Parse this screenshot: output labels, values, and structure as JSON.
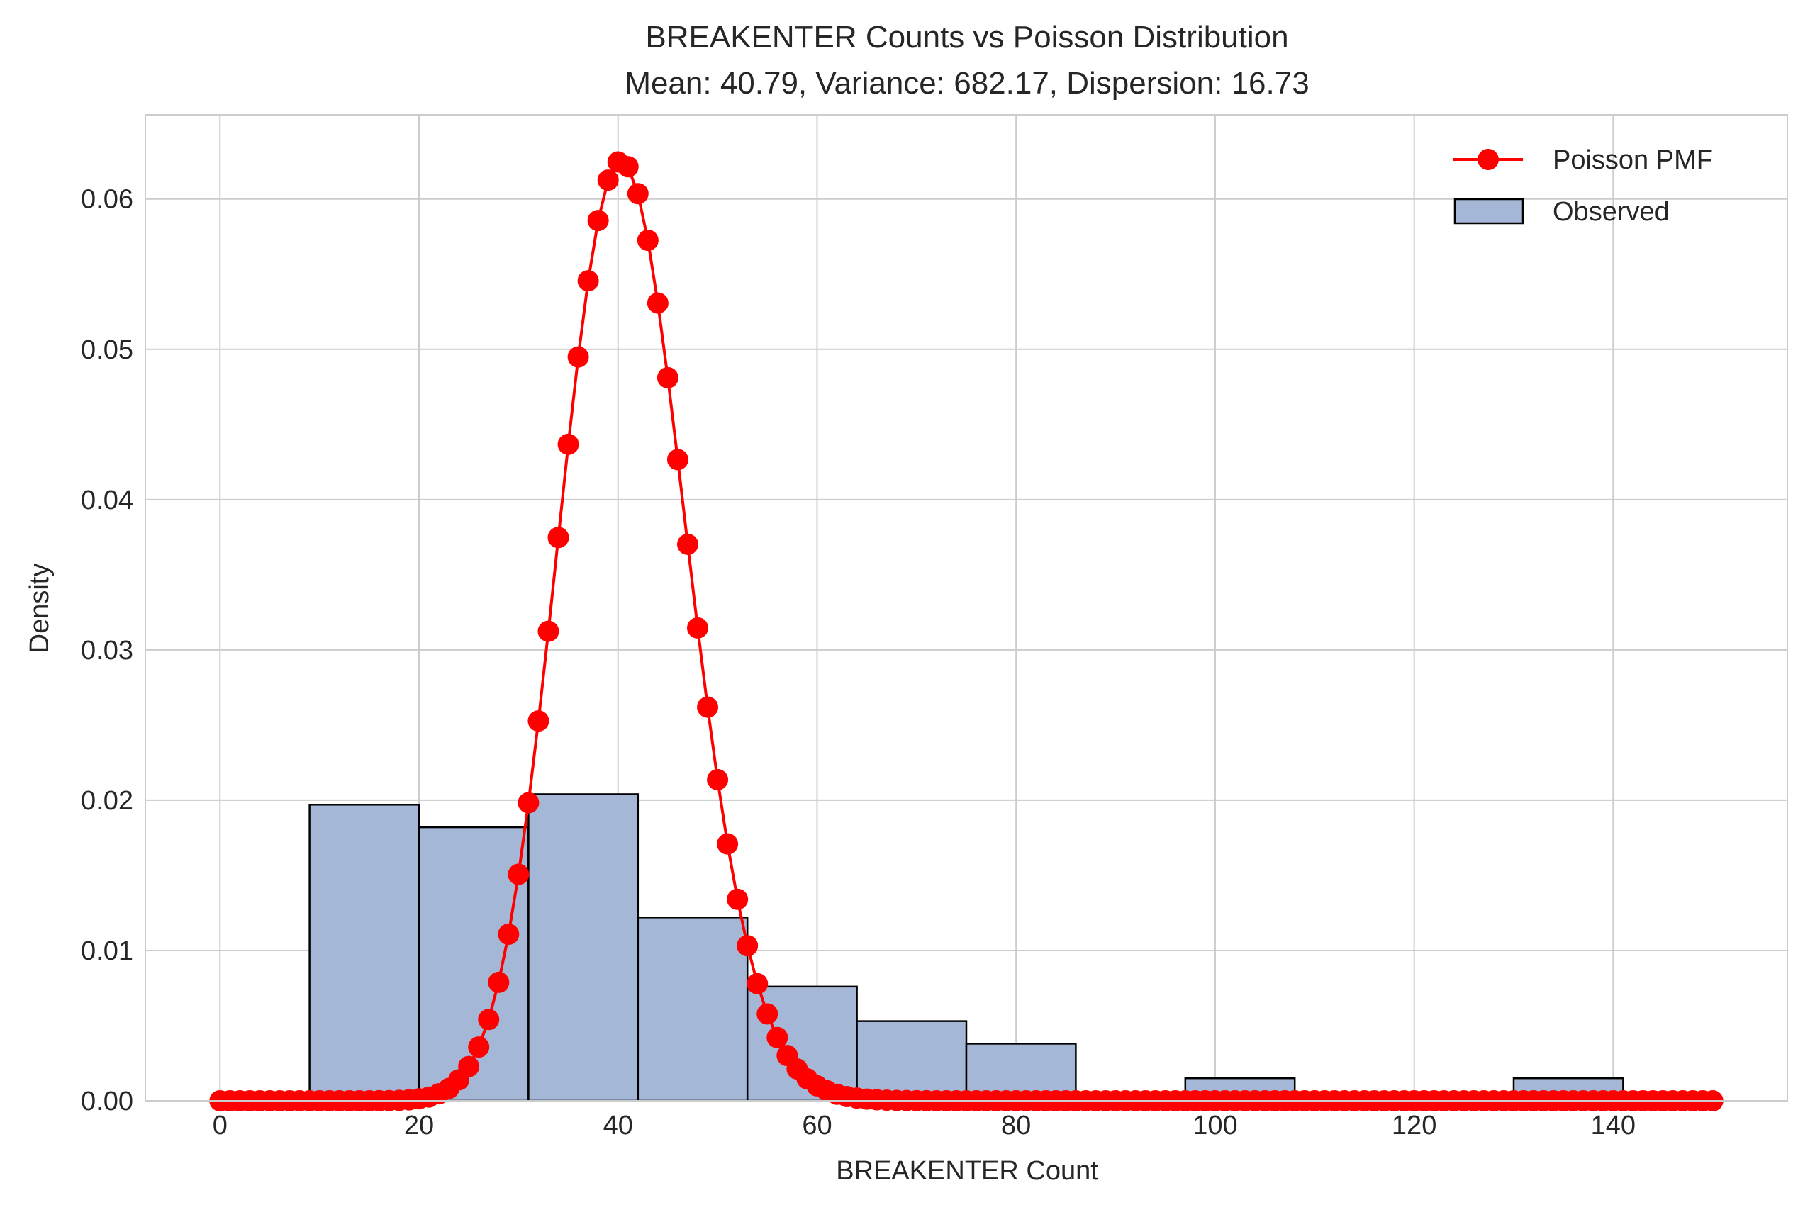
{
  "chart_data": {
    "type": "bar",
    "title": "BREAKENTER Counts vs Poisson Distribution",
    "subtitle": "Mean: 40.79, Variance: 682.17, Dispersion: 16.73",
    "xlabel": "BREAKENTER Count",
    "ylabel": "Density",
    "xlim": [
      -7.5,
      157.5
    ],
    "ylim": [
      0,
      0.0656
    ],
    "xticks": [
      0,
      20,
      40,
      60,
      80,
      100,
      120,
      140
    ],
    "yticks": [
      0.0,
      0.01,
      0.02,
      0.03,
      0.04,
      0.05,
      0.06
    ],
    "xtick_labels": [
      "0",
      "20",
      "40",
      "60",
      "80",
      "100",
      "120",
      "140"
    ],
    "ytick_labels": [
      "0.00",
      "0.01",
      "0.02",
      "0.03",
      "0.04",
      "0.05",
      "0.06"
    ],
    "grid": true,
    "legend_position": "top-right",
    "histogram": {
      "name": "Observed",
      "color": "#a5b7d7",
      "edge_color": "#000000",
      "bins": [
        {
          "start": 9,
          "end": 20,
          "value": 0.0197
        },
        {
          "start": 20,
          "end": 31,
          "value": 0.0182
        },
        {
          "start": 31,
          "end": 42,
          "value": 0.0204
        },
        {
          "start": 42,
          "end": 53,
          "value": 0.0122
        },
        {
          "start": 53,
          "end": 64,
          "value": 0.0076
        },
        {
          "start": 64,
          "end": 75,
          "value": 0.0053
        },
        {
          "start": 75,
          "end": 86,
          "value": 0.0038
        },
        {
          "start": 86,
          "end": 97,
          "value": 0.0
        },
        {
          "start": 97,
          "end": 108,
          "value": 0.0015
        },
        {
          "start": 108,
          "end": 119,
          "value": 0.0
        },
        {
          "start": 119,
          "end": 130,
          "value": 0.0
        },
        {
          "start": 130,
          "end": 141,
          "value": 0.0015
        }
      ]
    },
    "poisson": {
      "name": "Poisson PMF",
      "color": "#ff0000",
      "lambda": 40.79,
      "x_min": 0,
      "x_max": 150
    },
    "legend": [
      "Poisson PMF",
      "Observed"
    ]
  }
}
